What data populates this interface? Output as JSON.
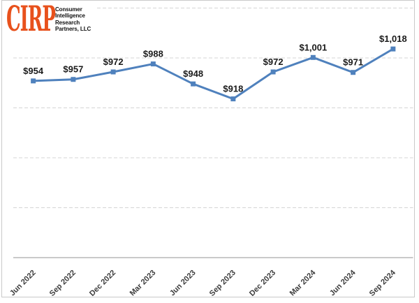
{
  "page": {
    "background": "#ffffff"
  },
  "logo": {
    "mark": "CIRP",
    "mark_color": "#E8511C",
    "lines": [
      "Consumer",
      "Intelligence",
      "Research",
      "Partners, LLC"
    ],
    "text_color": "#111111"
  },
  "chart_data": {
    "type": "line",
    "title": "",
    "xlabel": "",
    "ylabel": "",
    "categories": [
      "Jun 2022",
      "Sep 2022",
      "Dec 2022",
      "Mar 2023",
      "Jun 2023",
      "Sep 2023",
      "Dec 2023",
      "Mar 2024",
      "Jun 2024",
      "Sep 2024"
    ],
    "values": [
      954,
      957,
      972,
      988,
      948,
      918,
      972,
      1001,
      971,
      1018
    ],
    "point_labels": [
      "$954",
      "$957",
      "$972",
      "$988",
      "$948",
      "$918",
      "$972",
      "$1,001",
      "$971",
      "$1,018"
    ],
    "ylim": [
      600,
      1100
    ],
    "grid_interval": 100,
    "gridline_style": "dashed-horizontal",
    "legend": "none",
    "marker": "square",
    "colors": {
      "line": "#4F81BD",
      "marker": "#4F81BD",
      "point_label": "#1A1A1A",
      "tick_label": "#3D3D3D",
      "gridline": "#D5D5D5",
      "axis_line": "#C9C9C9",
      "frame_border": "#C9C9C9"
    }
  }
}
